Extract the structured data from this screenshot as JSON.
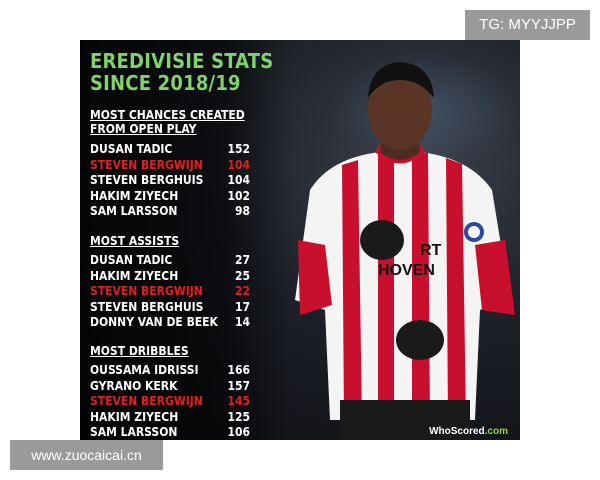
{
  "watermarks": {
    "tg": "TG: MYYJJPP",
    "url": "www.zuocaicai.cn"
  },
  "poster": {
    "title_line1": "EREDIVISIE STATS",
    "title_line2": "SINCE 2018/19",
    "sections": [
      {
        "heading_line1": "MOST CHANCES CREATED",
        "heading_line2": "FROM OPEN PLAY",
        "rows": [
          {
            "name": "DUSAN TADIC",
            "value": "152"
          },
          {
            "name": "STEVEN BERGWIJN",
            "value": "104"
          },
          {
            "name": "STEVEN BERGHUIS",
            "value": "104"
          },
          {
            "name": "HAKIM ZIYECH",
            "value": "102"
          },
          {
            "name": "SAM LARSSON",
            "value": "98"
          }
        ]
      },
      {
        "heading_line1": "MOST ASSISTS",
        "rows": [
          {
            "name": "DUSAN TADIC",
            "value": "27"
          },
          {
            "name": "HAKIM ZIYECH",
            "value": "25"
          },
          {
            "name": "STEVEN BERGWIJN",
            "value": "22"
          },
          {
            "name": "STEVEN BERGHUIS",
            "value": "17"
          },
          {
            "name": "DONNY VAN DE BEEK",
            "value": "14"
          }
        ]
      },
      {
        "heading_line1": "MOST DRIBBLES",
        "rows": [
          {
            "name": "OUSSAMA IDRISSI",
            "value": "166"
          },
          {
            "name": "GYRANO KERK",
            "value": "157"
          },
          {
            "name": "STEVEN BERGWIJN",
            "value": "145"
          },
          {
            "name": "HAKIM ZIYECH",
            "value": "125"
          },
          {
            "name": "SAM LARSSON",
            "value": "106"
          }
        ]
      }
    ],
    "shirt_text_1": "RT",
    "shirt_text_2": "HOVEN",
    "source_logo_prefix": "WhoScored",
    "source_logo_suffix": ".com"
  },
  "colors": {
    "title": "#7ed36a",
    "highlight": "#e0201e",
    "row_text": "#ffffff",
    "shirt_red": "#c8102e",
    "shirt_white": "#f4f4f4"
  }
}
